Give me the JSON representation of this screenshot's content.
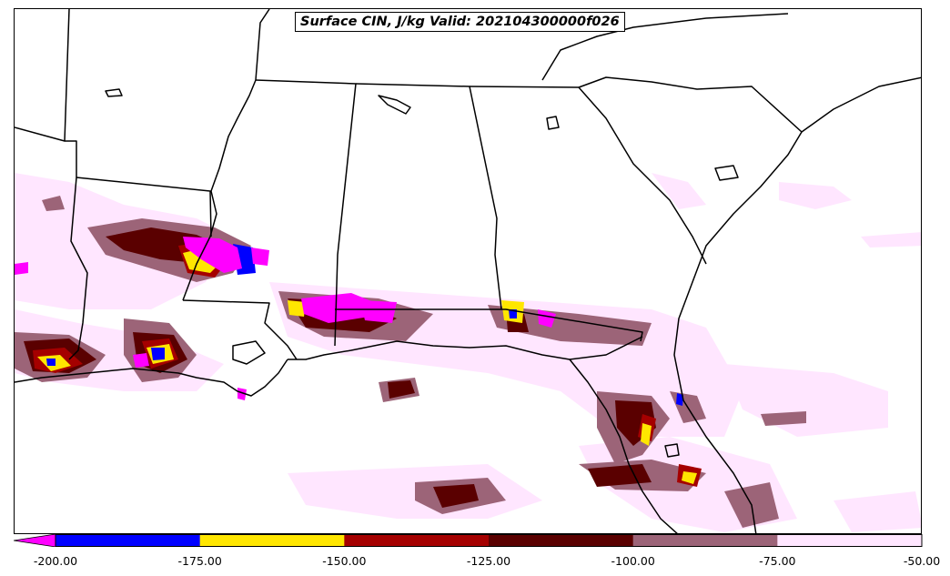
{
  "title": "Surface CIN, J/kg Valid: 202104300000f026",
  "colorbar": {
    "extend": "min",
    "under_color": "#ff00ff",
    "bins": [
      {
        "from": -200,
        "to": -175,
        "color": "#0000ff"
      },
      {
        "from": -175,
        "to": -150,
        "color": "#ffe600"
      },
      {
        "from": -150,
        "to": -125,
        "color": "#a50000"
      },
      {
        "from": -125,
        "to": -100,
        "color": "#5a0000"
      },
      {
        "from": -100,
        "to": -75,
        "color": "#9c6478"
      },
      {
        "from": -75,
        "to": -50,
        "color": "#ffe6ff"
      }
    ],
    "tick_labels": [
      "-200.00",
      "-175.00",
      "-150.00",
      "-125.00",
      "-100.00",
      "-75.00",
      "-50.00"
    ]
  },
  "map": {
    "region": "Southeastern United States and Gulf of Mexico",
    "field": "Surface CIN",
    "units": "J/kg",
    "background": "#ffffff",
    "boundary_color": "#000000"
  }
}
